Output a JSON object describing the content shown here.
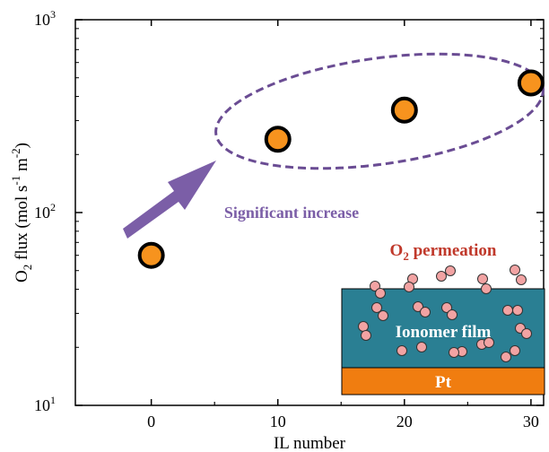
{
  "chart_data": {
    "type": "scatter",
    "x": [
      0,
      10,
      20,
      30
    ],
    "y": [
      60,
      240,
      340,
      470
    ],
    "xlabel": "IL number",
    "ylabel_parts": [
      "O",
      "2",
      " flux (mol s",
      "-1",
      " m",
      "-2",
      ")"
    ],
    "xlim": [
      -6,
      31
    ],
    "ylim": [
      10,
      1000
    ],
    "yscale": "log",
    "xticks": [
      "0",
      "10",
      "20",
      "30"
    ],
    "yticks": [
      {
        "base": "10",
        "exp": "1",
        "value": 10
      },
      {
        "base": "10",
        "exp": "2",
        "value": 100
      },
      {
        "base": "10",
        "exp": "3",
        "value": 1000
      }
    ],
    "marker_color": "#f7931e",
    "marker_edge": "#000000",
    "grid": false
  },
  "annotations": {
    "increase_label": "Significant increase",
    "increase_color": "#7b5ea7",
    "permeation_base": "O",
    "permeation_sub": "2",
    "permeation_rest": " permeation",
    "permeation_color": "#c0392b",
    "film_label": "Ionomer film",
    "film_color": "#2a7f93",
    "pt_label": "Pt",
    "pt_color": "#f07d10",
    "particle_color": "#f2a3a3"
  }
}
